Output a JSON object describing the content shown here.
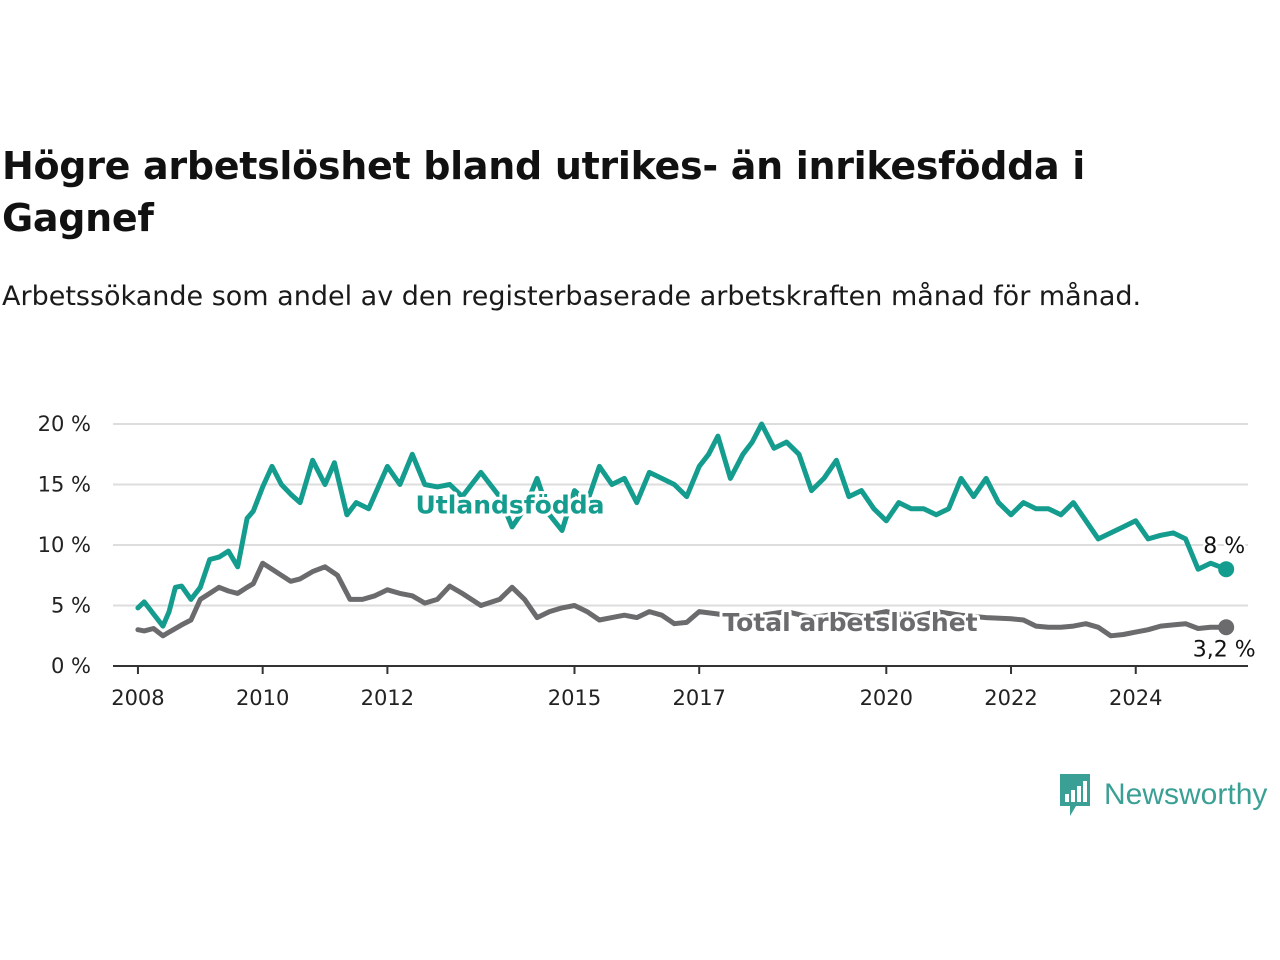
{
  "header": {
    "title": "Högre arbetslöshet bland utrikes- än inrikesfödda i Gagnef",
    "subtitle": "Arbetssökande som andel av den registerbaserade arbetskraften månad för månad."
  },
  "brand": {
    "name": "Newsworthy",
    "icon": "newsworthy-logo-icon",
    "color": "#3a9f95"
  },
  "colors": {
    "foreign": "#149c8e",
    "total": "#6b6b6e",
    "grid": "#dddddd",
    "axis": "#333333"
  },
  "chart_data": {
    "type": "line",
    "title": "Högre arbetslöshet bland utrikes- än inrikesfödda i Gagnef",
    "subtitle": "Arbetssökande som andel av den registerbaserade arbetskraften månad för månad.",
    "xlabel": "",
    "ylabel": "",
    "xlim": [
      2007.6,
      2025.8
    ],
    "ylim": [
      0,
      20
    ],
    "y_ticks": [
      0,
      5,
      10,
      15,
      20
    ],
    "y_tick_labels": [
      "0 %",
      "5 %",
      "10 %",
      "15 %",
      "20 %"
    ],
    "x_ticks": [
      2008,
      2010,
      2012,
      2015,
      2017,
      2020,
      2022,
      2024
    ],
    "x_tick_labels": [
      "2008",
      "2010",
      "2012",
      "2015",
      "2017",
      "2020",
      "2022",
      "2024"
    ],
    "grid": true,
    "series": [
      {
        "name": "Utlandsfödda",
        "color": "#149c8e",
        "end_label": "8 %",
        "x": [
          2008.0,
          2008.1,
          2008.25,
          2008.4,
          2008.5,
          2008.6,
          2008.7,
          2008.85,
          2009.0,
          2009.15,
          2009.3,
          2009.45,
          2009.6,
          2009.75,
          2009.85,
          2010.0,
          2010.15,
          2010.3,
          2010.45,
          2010.6,
          2010.8,
          2011.0,
          2011.15,
          2011.35,
          2011.5,
          2011.7,
          2012.0,
          2012.2,
          2012.4,
          2012.6,
          2012.8,
          2013.0,
          2013.2,
          2013.5,
          2013.8,
          2014.0,
          2014.2,
          2014.4,
          2014.6,
          2014.8,
          2015.0,
          2015.2,
          2015.4,
          2015.6,
          2015.8,
          2016.0,
          2016.2,
          2016.4,
          2016.6,
          2016.8,
          2017.0,
          2017.15,
          2017.3,
          2017.5,
          2017.7,
          2017.85,
          2018.0,
          2018.2,
          2018.4,
          2018.6,
          2018.8,
          2019.0,
          2019.2,
          2019.4,
          2019.6,
          2019.8,
          2020.0,
          2020.2,
          2020.4,
          2020.6,
          2020.8,
          2021.0,
          2021.2,
          2021.4,
          2021.6,
          2021.8,
          2022.0,
          2022.2,
          2022.4,
          2022.6,
          2022.8,
          2023.0,
          2023.2,
          2023.4,
          2023.6,
          2023.8,
          2024.0,
          2024.2,
          2024.4,
          2024.6,
          2024.8,
          2025.0,
          2025.2,
          2025.45
        ],
        "y": [
          4.8,
          5.3,
          4.3,
          3.3,
          4.5,
          6.5,
          6.6,
          5.5,
          6.5,
          8.8,
          9.0,
          9.5,
          8.2,
          12.2,
          12.8,
          14.8,
          16.5,
          15.0,
          14.2,
          13.5,
          17.0,
          15.0,
          16.8,
          12.5,
          13.5,
          13.0,
          16.5,
          15.0,
          17.5,
          15.0,
          14.8,
          15.0,
          14.0,
          16.0,
          14.0,
          11.5,
          13.0,
          15.5,
          12.5,
          11.2,
          14.5,
          13.5,
          16.5,
          15.0,
          15.5,
          13.5,
          16.0,
          15.5,
          15.0,
          14.0,
          16.5,
          17.5,
          19.0,
          15.5,
          17.5,
          18.5,
          20.0,
          18.0,
          18.5,
          17.5,
          14.5,
          15.5,
          17.0,
          14.0,
          14.5,
          13.0,
          12.0,
          13.5,
          13.0,
          13.0,
          12.5,
          13.0,
          15.5,
          14.0,
          15.5,
          13.5,
          12.5,
          13.5,
          13.0,
          13.0,
          12.5,
          13.5,
          12.0,
          10.5,
          11.0,
          11.5,
          12.0,
          10.5,
          10.8,
          11.0,
          10.5,
          8.0,
          8.5,
          8.0
        ]
      },
      {
        "name": "Total arbetslöshet",
        "color": "#6b6b6e",
        "end_label": "3,2 %",
        "x": [
          2008.0,
          2008.1,
          2008.25,
          2008.4,
          2008.5,
          2008.7,
          2008.85,
          2009.0,
          2009.15,
          2009.3,
          2009.45,
          2009.6,
          2009.75,
          2009.85,
          2010.0,
          2010.15,
          2010.3,
          2010.45,
          2010.6,
          2010.8,
          2011.0,
          2011.2,
          2011.4,
          2011.6,
          2011.8,
          2012.0,
          2012.2,
          2012.4,
          2012.6,
          2012.8,
          2013.0,
          2013.2,
          2013.5,
          2013.8,
          2014.0,
          2014.2,
          2014.4,
          2014.6,
          2014.8,
          2015.0,
          2015.2,
          2015.4,
          2015.6,
          2015.8,
          2016.0,
          2016.2,
          2016.4,
          2016.6,
          2016.8,
          2017.0,
          2017.3,
          2017.6,
          2018.0,
          2018.4,
          2018.8,
          2019.2,
          2019.6,
          2020.0,
          2020.4,
          2020.8,
          2021.2,
          2021.6,
          2022.0,
          2022.2,
          2022.4,
          2022.6,
          2022.8,
          2023.0,
          2023.2,
          2023.4,
          2023.6,
          2023.8,
          2024.0,
          2024.2,
          2024.4,
          2024.6,
          2024.8,
          2025.0,
          2025.2,
          2025.45
        ],
        "y": [
          3.0,
          2.9,
          3.1,
          2.5,
          2.8,
          3.4,
          3.8,
          5.5,
          6.0,
          6.5,
          6.2,
          6.0,
          6.5,
          6.8,
          8.5,
          8.0,
          7.5,
          7.0,
          7.2,
          7.8,
          8.2,
          7.5,
          5.5,
          5.5,
          5.8,
          6.3,
          6.0,
          5.8,
          5.2,
          5.5,
          6.6,
          6.0,
          5.0,
          5.5,
          6.5,
          5.5,
          4.0,
          4.5,
          4.8,
          5.0,
          4.5,
          3.8,
          4.0,
          4.2,
          4.0,
          4.5,
          4.2,
          3.5,
          3.6,
          4.5,
          4.3,
          4.0,
          4.2,
          4.5,
          4.0,
          4.3,
          4.1,
          4.5,
          4.0,
          4.5,
          4.2,
          4.0,
          3.9,
          3.8,
          3.3,
          3.2,
          3.2,
          3.3,
          3.5,
          3.2,
          2.5,
          2.6,
          2.8,
          3.0,
          3.3,
          3.4,
          3.5,
          3.1,
          3.2,
          3.2
        ]
      }
    ]
  }
}
